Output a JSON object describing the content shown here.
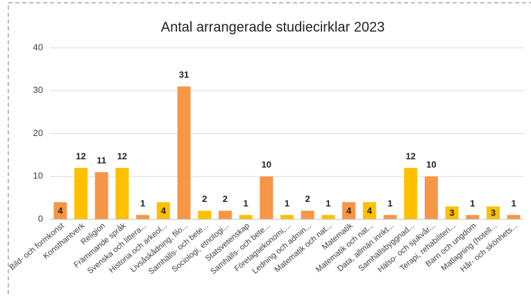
{
  "chart_data": {
    "type": "bar",
    "title": "Antal arrangerade studiecirklar 2023",
    "categories": [
      "Bild- och formkonst",
      "Konsthantverk",
      "Religion",
      "Främmande språk",
      "Svenska och littera...",
      "Historia och arkeol...",
      "Livsåskådning, filo...",
      "Samhälls- och bete...",
      "Sociologi, etnologi...",
      "Statsvetenskap",
      "Samhälls- och bete...",
      "Företagsekonomi,...",
      "Ledning och admin...",
      "Matematik och nat...",
      "Matematik",
      "Matematik och nat...",
      "Data, allmän inrikt...",
      "Samhällsbyggnad...",
      "Hälso- och sjukvår...",
      "Terapi, rehabiliteri...",
      "Barn och ungdom",
      "Matlagning (hotell...",
      "Hår- och skönhets..."
    ],
    "values": [
      4,
      12,
      11,
      12,
      1,
      4,
      31,
      2,
      2,
      1,
      10,
      1,
      2,
      1,
      4,
      4,
      1,
      12,
      10,
      3,
      1,
      3,
      1
    ],
    "colors": [
      "#f79646",
      "#ffc000",
      "#f79646",
      "#ffc000",
      "#f79646",
      "#ffc000",
      "#f79646",
      "#ffc000",
      "#f79646",
      "#ffc000",
      "#f79646",
      "#ffc000",
      "#f79646",
      "#ffc000",
      "#f79646",
      "#ffc000",
      "#f79646",
      "#ffc000",
      "#f79646",
      "#ffc000",
      "#f79646",
      "#ffc000",
      "#f79646"
    ],
    "ylim": [
      0,
      40
    ],
    "yticks": [
      0,
      10,
      20,
      30,
      40
    ],
    "grid": true
  }
}
